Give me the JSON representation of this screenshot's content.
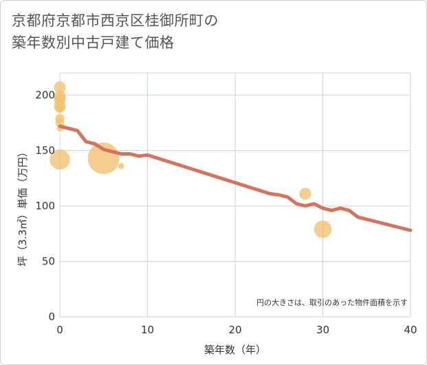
{
  "title_lines": [
    "京都府京都市西京区桂御所町の",
    "築年数別中古戸建て価格"
  ],
  "chart_data": {
    "type": "scatter+line",
    "title": "京都府京都市西京区桂御所町の築年数別中古戸建て価格",
    "xlabel": "築年数（年）",
    "ylabel": "坪（3.3㎡）単価（万円）",
    "xlim": [
      0,
      40
    ],
    "ylim": [
      0,
      220
    ],
    "xticks": [
      0,
      10,
      20,
      30,
      40
    ],
    "yticks": [
      0,
      50,
      100,
      150,
      200
    ],
    "note": "円の大きさは、取引のあった物件面積を示す",
    "line": {
      "name": "trend",
      "color": "#d4735e",
      "x": [
        0,
        1,
        2,
        3,
        4,
        5,
        6,
        7,
        8,
        9,
        10,
        12,
        14,
        16,
        18,
        20,
        22,
        24,
        25,
        26,
        27,
        28,
        29,
        30,
        31,
        32,
        33,
        34,
        35,
        36,
        38,
        40
      ],
      "y": [
        172,
        170,
        168,
        158,
        156,
        151,
        149,
        147,
        147,
        145,
        146,
        141,
        136,
        131,
        126,
        121,
        116,
        111,
        110,
        108,
        102,
        100,
        102,
        98,
        96,
        98,
        96,
        90,
        88,
        86,
        82,
        78
      ]
    },
    "bubbles": {
      "color": "#f2c070",
      "points": [
        {
          "x": 0,
          "y": 207,
          "size": 3
        },
        {
          "x": 0,
          "y": 199,
          "size": 3
        },
        {
          "x": 0,
          "y": 196,
          "size": 3
        },
        {
          "x": 0,
          "y": 190,
          "size": 3
        },
        {
          "x": 0,
          "y": 188,
          "size": 2
        },
        {
          "x": 0,
          "y": 179,
          "size": 2
        },
        {
          "x": 0,
          "y": 175,
          "size": 2
        },
        {
          "x": 0,
          "y": 170,
          "size": 1
        },
        {
          "x": 0,
          "y": 142,
          "size": 6
        },
        {
          "x": 5,
          "y": 143,
          "size": 10
        },
        {
          "x": 7,
          "y": 136,
          "size": 1
        },
        {
          "x": 28,
          "y": 111,
          "size": 3
        },
        {
          "x": 30,
          "y": 79,
          "size": 5
        }
      ]
    }
  }
}
